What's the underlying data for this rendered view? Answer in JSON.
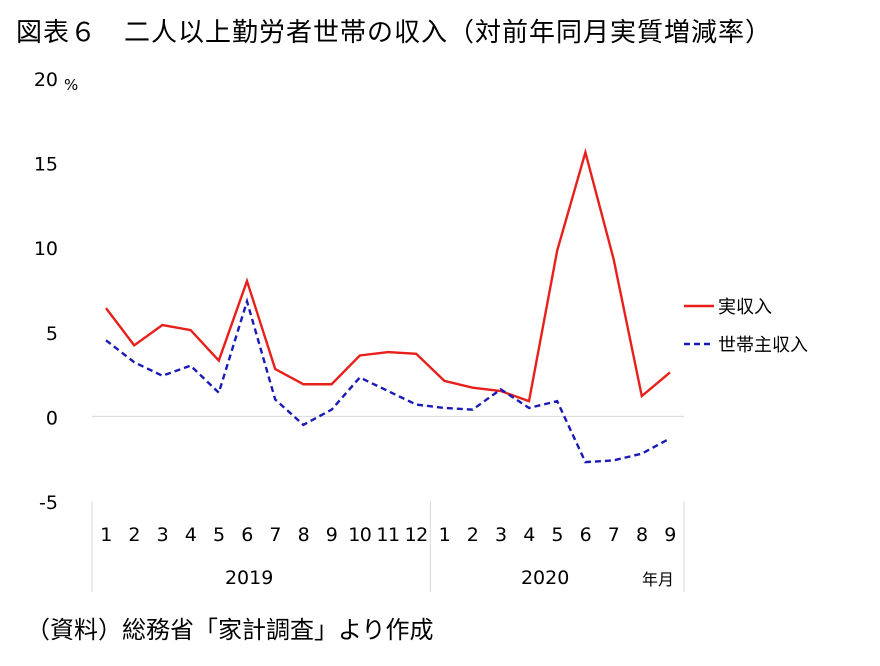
{
  "title": "図表６　二人以上勤労者世帯の収入（対前年同月実質増減率）",
  "source": "（資料）総務省「家計調査」より作成",
  "colors": {
    "series1": "#e8201c",
    "series2": "#1a1ab8",
    "zero": "#d9d9d9",
    "axis": "#d9d9d9"
  },
  "chart_data": {
    "type": "line",
    "y_unit": "%",
    "ylim": [
      -5,
      20
    ],
    "yticks": [
      "-5",
      "0",
      "5",
      "10",
      "15",
      "20"
    ],
    "x_unit": "年月",
    "categories": [
      "1",
      "2",
      "3",
      "4",
      "5",
      "6",
      "7",
      "8",
      "9",
      "10",
      "11",
      "12",
      "1",
      "2",
      "3",
      "4",
      "5",
      "6",
      "7",
      "8",
      "9"
    ],
    "years": [
      {
        "label": "2019",
        "months": 12
      },
      {
        "label": "2020",
        "months": 9
      }
    ],
    "grid": false,
    "legend_position": "right",
    "series": [
      {
        "name": "実収入",
        "style": "solid",
        "values": [
          6.4,
          4.2,
          5.4,
          5.1,
          3.3,
          8.0,
          2.8,
          1.9,
          1.9,
          3.6,
          3.8,
          3.7,
          2.1,
          1.7,
          1.5,
          0.9,
          9.8,
          15.6,
          9.3,
          1.2,
          2.6
        ]
      },
      {
        "name": "世帯主収入",
        "style": "dashed",
        "values": [
          4.5,
          3.2,
          2.4,
          3.0,
          1.4,
          6.8,
          1.0,
          -0.5,
          0.4,
          2.3,
          1.5,
          0.7,
          0.5,
          0.4,
          1.6,
          0.5,
          0.9,
          -2.7,
          -2.6,
          -2.2,
          -1.3
        ]
      }
    ]
  }
}
